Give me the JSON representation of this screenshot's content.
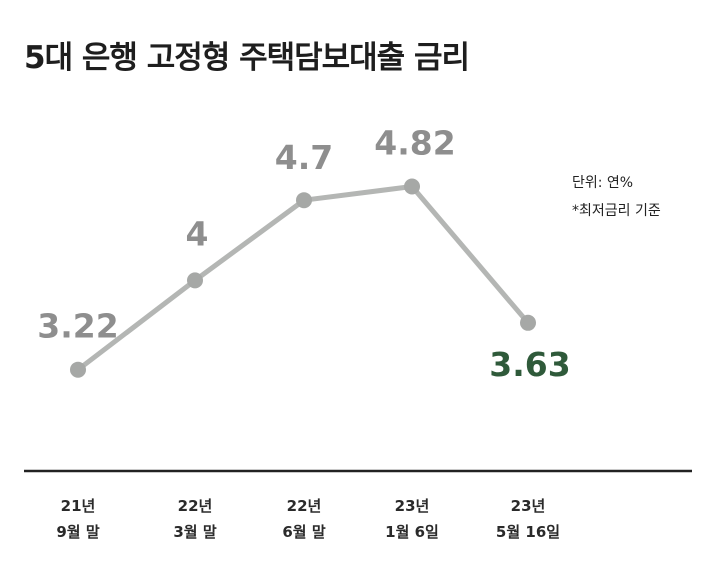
{
  "title": "5대 은행 고정형 주택담보대출 금리",
  "notes": {
    "unit": "단위: 연%",
    "basis": "*최저금리 기준"
  },
  "colors": {
    "line": "#b4b6b4",
    "marker": "#a6a8a6",
    "label": "#8e8e8e",
    "highlight": "#2f5a3a",
    "axis": "#222222"
  },
  "chart_data": {
    "type": "line",
    "title": "5대 은행 고정형 주택담보대출 금리",
    "xlabel": "",
    "ylabel": "",
    "categories": [
      [
        "21년",
        "9월 말"
      ],
      [
        "22년",
        "3월 말"
      ],
      [
        "22년",
        "6월 말"
      ],
      [
        "23년",
        "1월 6일"
      ],
      [
        "23년",
        "5월 16일"
      ]
    ],
    "series": [
      {
        "values": [
          3.22,
          4,
          4.7,
          4.82,
          3.63
        ],
        "labels": [
          "3.22",
          "4",
          "4.7",
          "4.82",
          "3.63"
        ]
      }
    ],
    "highlight_index": 4,
    "grid": false,
    "legend": "none"
  }
}
